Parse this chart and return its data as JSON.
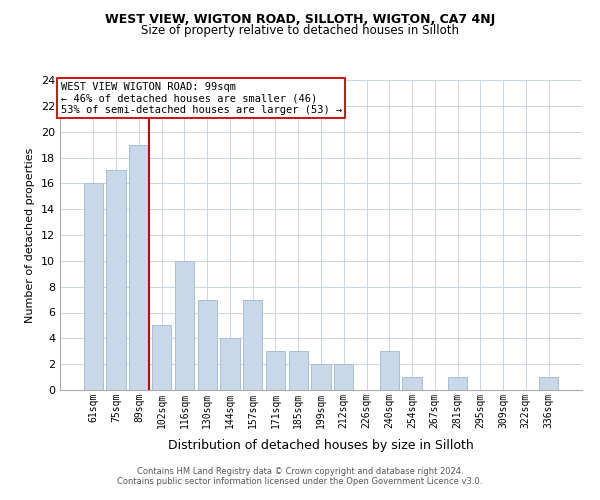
{
  "title1": "WEST VIEW, WIGTON ROAD, SILLOTH, WIGTON, CA7 4NJ",
  "title2": "Size of property relative to detached houses in Silloth",
  "xlabel": "Distribution of detached houses by size in Silloth",
  "ylabel": "Number of detached properties",
  "bin_labels": [
    "61sqm",
    "75sqm",
    "89sqm",
    "102sqm",
    "116sqm",
    "130sqm",
    "144sqm",
    "157sqm",
    "171sqm",
    "185sqm",
    "199sqm",
    "212sqm",
    "226sqm",
    "240sqm",
    "254sqm",
    "267sqm",
    "281sqm",
    "295sqm",
    "309sqm",
    "322sqm",
    "336sqm"
  ],
  "bar_heights": [
    16,
    17,
    19,
    5,
    10,
    7,
    4,
    7,
    3,
    3,
    2,
    2,
    0,
    3,
    1,
    0,
    1,
    0,
    0,
    0,
    1
  ],
  "bar_color": "#c8d8e8",
  "bar_edgecolor": "#a8c0d8",
  "highlight_line_color": "#cc0000",
  "annotation_text": "WEST VIEW WIGTON ROAD: 99sqm\n← 46% of detached houses are smaller (46)\n53% of semi-detached houses are larger (53) →",
  "annotation_box_edgecolor": "#cc0000",
  "ylim": [
    0,
    24
  ],
  "yticks": [
    0,
    2,
    4,
    6,
    8,
    10,
    12,
    14,
    16,
    18,
    20,
    22,
    24
  ],
  "footer1": "Contains HM Land Registry data © Crown copyright and database right 2024.",
  "footer2": "Contains public sector information licensed under the Open Government Licence v3.0.",
  "bg_color": "#ffffff",
  "grid_color": "#c8d4de"
}
